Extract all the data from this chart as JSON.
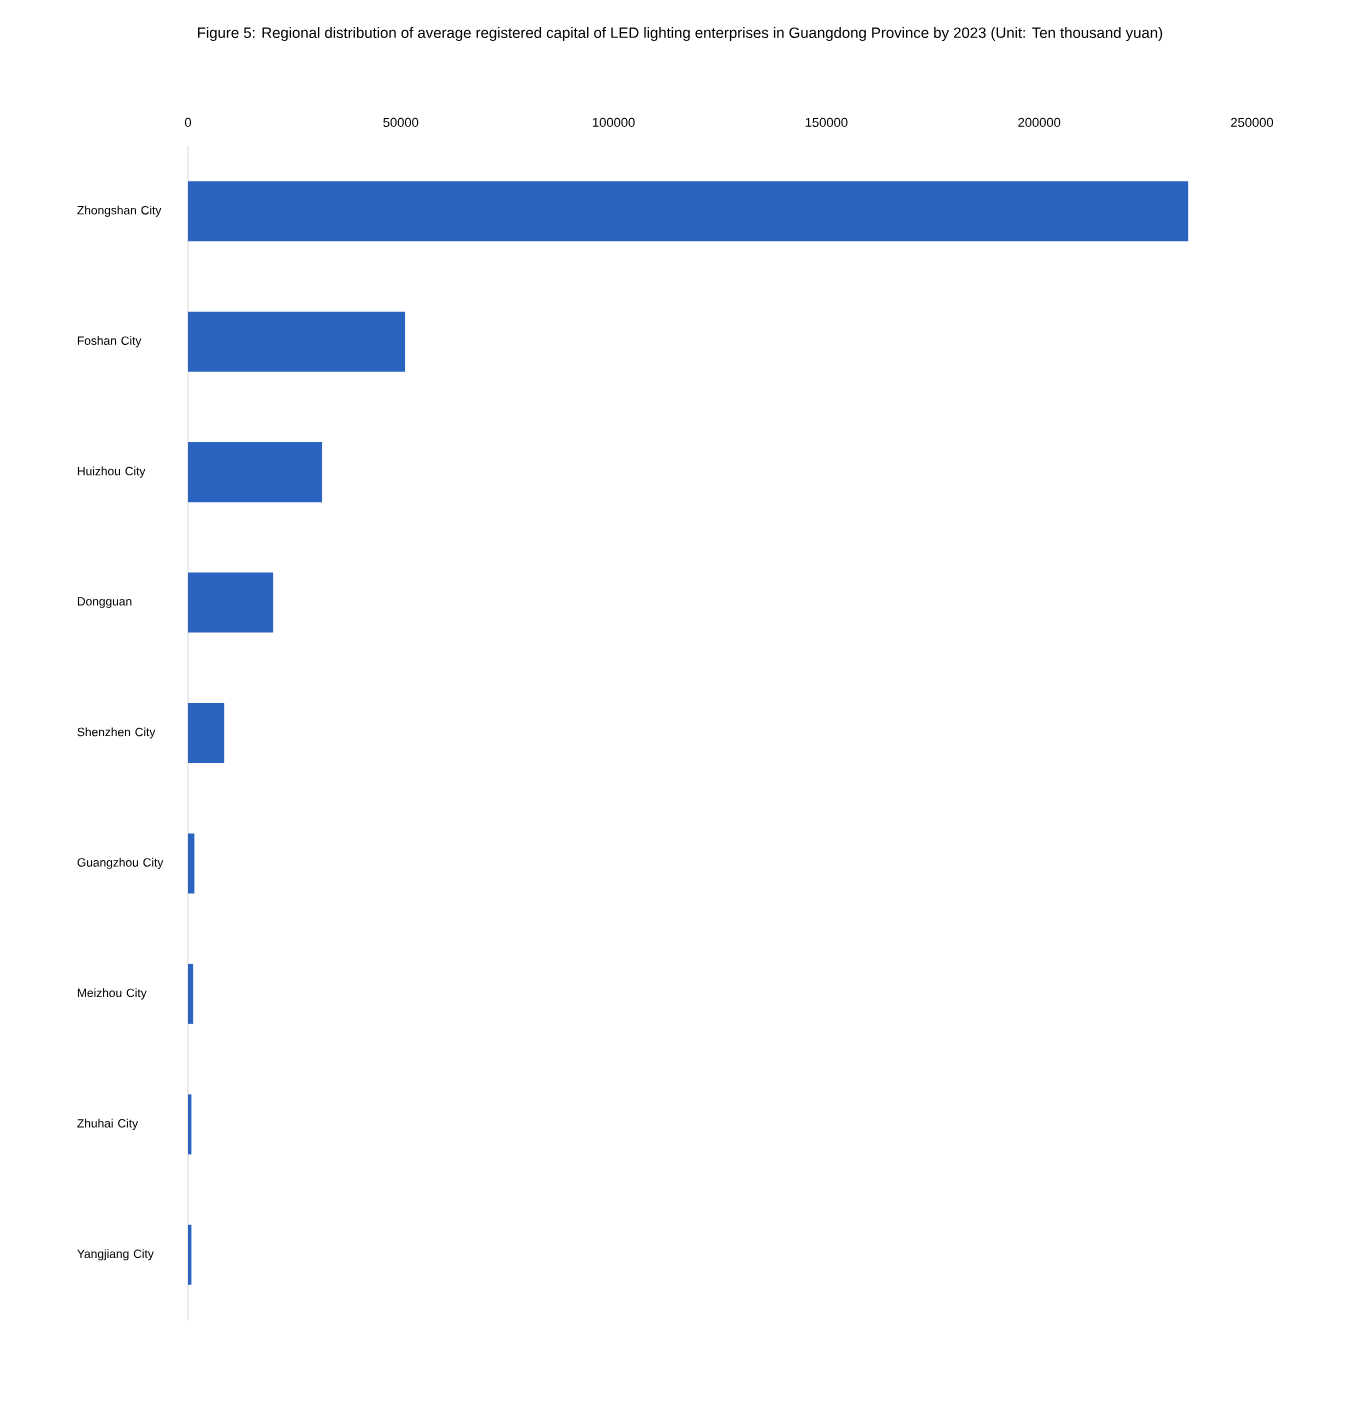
{
  "chart_data": {
    "type": "bar",
    "orientation": "horizontal",
    "title": "Figure 5: Regional distribution of average registered capital of LED lighting enterprises in Guangdong Province by 2023 (Unit: Ten thousand yuan)",
    "categories": [
      "Zhongshan City",
      "Foshan City",
      "Huizhou City",
      "Dongguan",
      "Shenzhen City",
      "Guangzhou City",
      "Meizhou City",
      "Zhuhai City",
      "Yangjiang City"
    ],
    "values": [
      235000,
      51000,
      31500,
      20000,
      8500,
      1500,
      1200,
      800,
      800
    ],
    "color": "#2b63c0",
    "xlim": [
      0,
      250000
    ],
    "xticks": [
      0,
      50000,
      100000,
      150000,
      200000,
      250000
    ]
  }
}
